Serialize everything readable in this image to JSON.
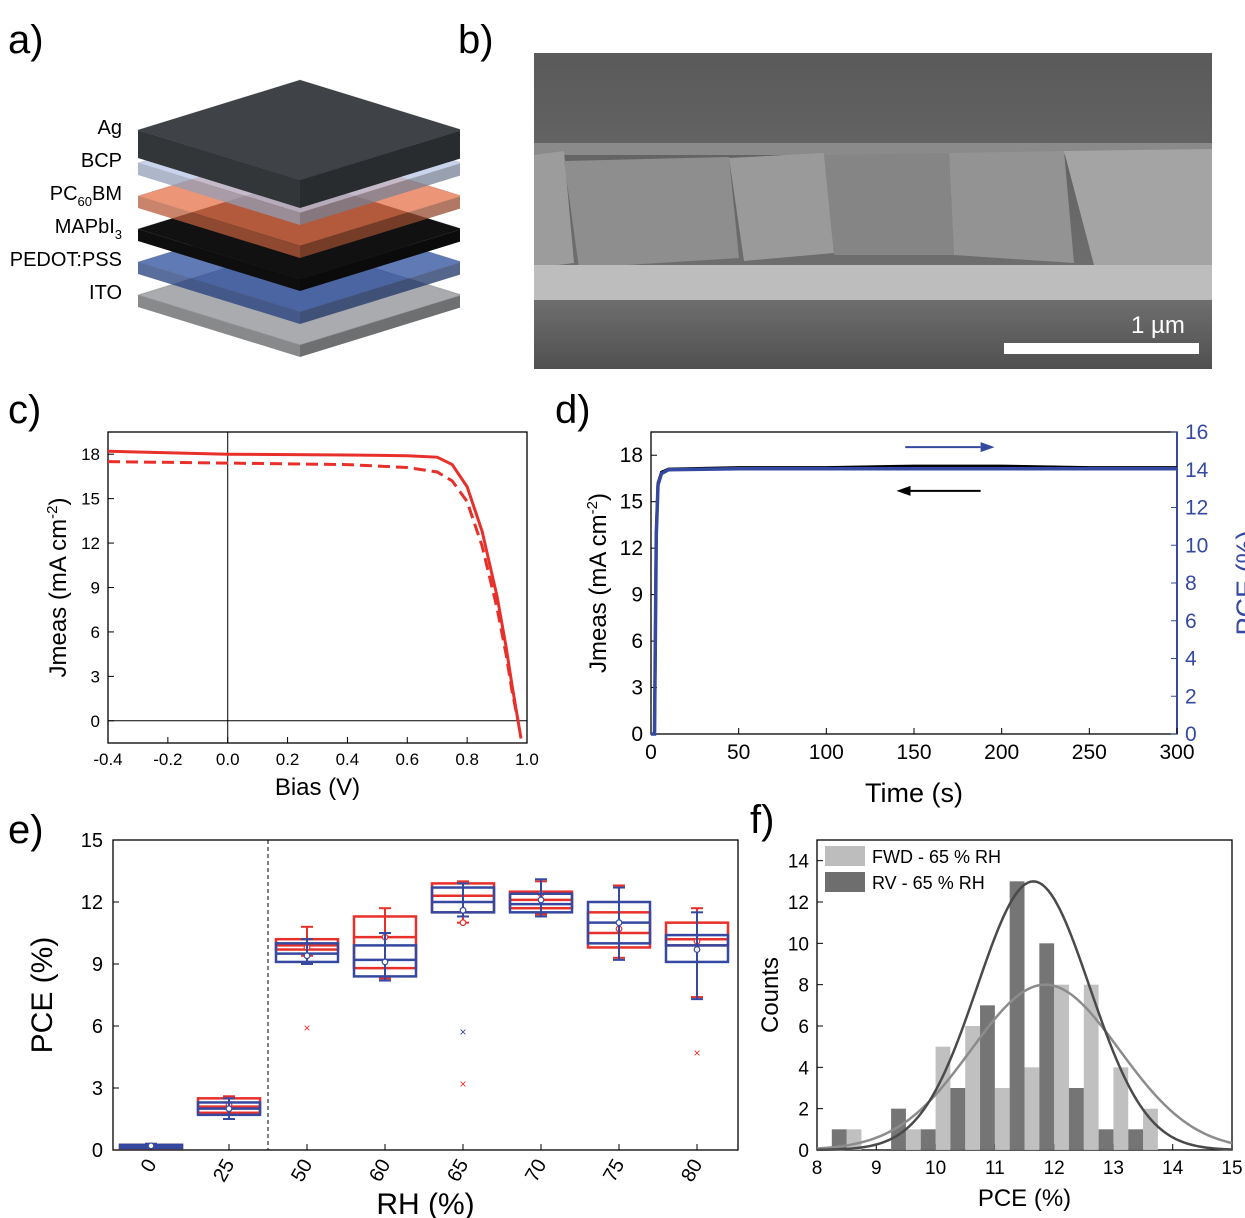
{
  "panels": {
    "a": "a)",
    "b": "b)",
    "c": "c)",
    "d": "d)",
    "e": "e)",
    "f": "f)"
  },
  "stack": {
    "layers": [
      {
        "label": "Ag",
        "color": "#3f4347"
      },
      {
        "label": "BCP",
        "color": "#b8c6e6"
      },
      {
        "label": "PC",
        "sub": "60",
        "suffix": "BM",
        "color": "#e8734a"
      },
      {
        "label": "MAPbI",
        "sub": "3",
        "suffix": "",
        "color": "#111111"
      },
      {
        "label": "PEDOT:PSS",
        "color": "#2c4e9e"
      },
      {
        "label": "ITO",
        "color": "#a9abae"
      }
    ]
  },
  "sem": {
    "scale_label": "1 µm"
  },
  "colors": {
    "red": "#e8302a",
    "blue": "#3549a0",
    "black": "#000000",
    "light_gray": "#bdbdbd",
    "dark_gray": "#6e6e6e"
  },
  "chart_data": [
    {
      "panel": "c",
      "type": "line",
      "xlabel": "Bias (V)",
      "ylabel": "Jmeas (mA cm",
      "ylabel_sup": "-2",
      "ylabel_close": ")",
      "xlim": [
        -0.4,
        1.0
      ],
      "ylim": [
        -1.5,
        19.5
      ],
      "xticks": [
        "-0.4",
        "-0.2",
        "0.0",
        "0.2",
        "0.4",
        "0.6",
        "0.8",
        "1.0"
      ],
      "yticks": [
        "0",
        "3",
        "6",
        "9",
        "12",
        "15",
        "18"
      ],
      "series": [
        {
          "style": "solid",
          "x": [
            -0.4,
            0.0,
            0.4,
            0.6,
            0.7,
            0.75,
            0.8,
            0.85,
            0.9,
            0.93,
            0.95,
            0.97,
            0.98
          ],
          "y": [
            18.2,
            18.0,
            17.95,
            17.9,
            17.8,
            17.3,
            15.8,
            12.8,
            8.4,
            5.0,
            2.4,
            0.0,
            -1.2
          ]
        },
        {
          "style": "dashed",
          "x": [
            -0.4,
            0.0,
            0.4,
            0.6,
            0.7,
            0.75,
            0.8,
            0.85,
            0.9,
            0.93,
            0.95,
            0.97
          ],
          "y": [
            17.5,
            17.4,
            17.3,
            17.1,
            16.8,
            16.2,
            14.8,
            11.8,
            7.6,
            4.5,
            2.0,
            0.0
          ]
        }
      ]
    },
    {
      "panel": "d",
      "type": "line",
      "xlabel": "Time (s)",
      "ylabel": "Jmeas (mA cm",
      "ylabel_sup": "-2",
      "ylabel_close": ")",
      "y2label": "PCE (%)",
      "xlim": [
        0,
        300
      ],
      "ylim": [
        0,
        19.5
      ],
      "y2lim": [
        0,
        16
      ],
      "xticks": [
        "0",
        "50",
        "100",
        "150",
        "200",
        "250",
        "300"
      ],
      "yticks": [
        "0",
        "3",
        "6",
        "9",
        "12",
        "15",
        "18"
      ],
      "y2ticks": [
        "0",
        "2",
        "4",
        "6",
        "8",
        "10",
        "12",
        "14",
        "16"
      ],
      "series": [
        {
          "axis": "left",
          "x": [
            0,
            2,
            3,
            4,
            6,
            10,
            50,
            100,
            150,
            200,
            250,
            300
          ],
          "y": [
            0,
            0,
            13.0,
            16.2,
            16.9,
            17.1,
            17.2,
            17.2,
            17.3,
            17.3,
            17.2,
            17.2
          ]
        },
        {
          "axis": "right",
          "x": [
            0,
            2,
            3,
            4,
            6,
            10,
            50,
            100,
            150,
            200,
            250,
            300
          ],
          "y": [
            0,
            0,
            10.5,
            13.2,
            13.8,
            14.0,
            14.05,
            14.05,
            14.05,
            14.05,
            14.05,
            14.05
          ]
        }
      ]
    },
    {
      "panel": "e",
      "type": "box",
      "xlabel": "RH (%)",
      "ylabel": "PCE (%)",
      "ylim": [
        0,
        15
      ],
      "yticks": [
        "0",
        "3",
        "6",
        "9",
        "12",
        "15"
      ],
      "categories": [
        "0",
        "25",
        "50",
        "60",
        "65",
        "70",
        "75",
        "80"
      ],
      "series": [
        {
          "name": "red",
          "boxes": [
            [
              0.1,
              0.1,
              0.2,
              0.25,
              0.3
            ],
            [
              1.5,
              1.8,
              2.1,
              2.5,
              2.6
            ],
            [
              9.4,
              9.7,
              9.9,
              10.2,
              10.8
            ],
            [
              8.3,
              8.8,
              10.3,
              11.3,
              11.7
            ],
            [
              11.0,
              11.5,
              12.3,
              12.9,
              13.0
            ],
            [
              11.4,
              11.7,
              12.1,
              12.5,
              13.0
            ],
            [
              9.3,
              9.8,
              10.5,
              11.5,
              12.8
            ],
            [
              7.4,
              9.9,
              10.2,
              11.0,
              11.7
            ]
          ],
          "means": [
            0.2,
            2.2,
            9.8,
            10.3,
            11.0,
            12.4,
            10.7,
            10.1
          ],
          "outliers": [
            [
              2,
              5.9
            ],
            [
              4,
              3.2
            ],
            [
              7,
              4.7
            ]
          ]
        },
        {
          "name": "blue",
          "boxes": [
            [
              0.1,
              0.1,
              0.2,
              0.25,
              0.3
            ],
            [
              1.5,
              1.7,
              2.0,
              2.3,
              2.5
            ],
            [
              9.0,
              9.1,
              9.5,
              10.0,
              10.2
            ],
            [
              8.2,
              8.4,
              9.2,
              9.9,
              10.5
            ],
            [
              11.3,
              11.5,
              12.0,
              12.7,
              12.9
            ],
            [
              11.3,
              11.5,
              11.9,
              12.4,
              13.1
            ],
            [
              9.2,
              10.0,
              11.0,
              12.0,
              12.7
            ],
            [
              7.3,
              9.1,
              9.9,
              10.4,
              11.5
            ]
          ],
          "means": [
            0.2,
            2.0,
            9.4,
            9.1,
            11.6,
            12.1,
            11.0,
            9.7
          ],
          "outliers": [
            [
              4,
              5.7
            ]
          ]
        }
      ]
    },
    {
      "panel": "f",
      "type": "bar",
      "xlabel": "PCE (%)",
      "ylabel": "Counts",
      "xlim": [
        8,
        15
      ],
      "ylim": [
        0,
        15
      ],
      "xticks": [
        "8",
        "9",
        "10",
        "11",
        "12",
        "13",
        "14",
        "15"
      ],
      "yticks": [
        "0",
        "2",
        "4",
        "6",
        "8",
        "10",
        "12",
        "14"
      ],
      "bin_edges": [
        8.25,
        8.75,
        9.25,
        9.75,
        10.25,
        10.75,
        11.25,
        11.75,
        12.25,
        12.75,
        13.25,
        13.75,
        14.25
      ],
      "series": [
        {
          "name": "FWD - 65 % RH",
          "color": "light",
          "values": [
            1,
            0,
            1,
            5,
            6,
            3,
            4,
            8,
            8,
            4,
            2,
            0
          ],
          "offset": 0.25
        },
        {
          "name": "RV - 65 % RH",
          "color": "dark",
          "values": [
            1,
            0,
            2,
            1,
            3,
            7,
            13,
            10,
            3,
            1,
            1,
            0
          ],
          "offset": 0
        },
        {
          "name": "fit_fwd",
          "mean": 11.85,
          "sigma": 1.25,
          "peak": 8
        },
        {
          "name": "fit_rv",
          "mean": 11.65,
          "sigma": 0.95,
          "peak": 13
        }
      ]
    }
  ]
}
